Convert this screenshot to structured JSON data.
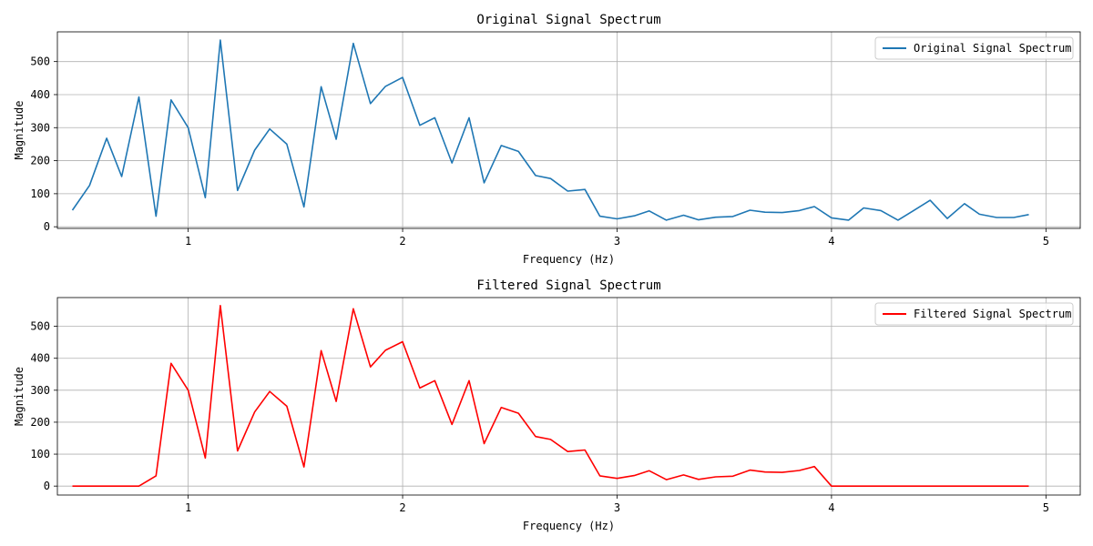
{
  "chart_data": [
    {
      "type": "line",
      "title": "Original Signal Spectrum",
      "xlabel": "Frequency (Hz)",
      "ylabel": "Magnitude",
      "xlim": [
        0.39,
        5.16
      ],
      "ylim": [
        -5,
        590
      ],
      "xticks": [
        1,
        2,
        3,
        4,
        5
      ],
      "yticks": [
        0,
        100,
        200,
        300,
        400,
        500
      ],
      "grid": true,
      "legend_position": "top-right",
      "series": [
        {
          "name": "Original Signal Spectrum",
          "color": "#1f77b4",
          "x": [
            0.46,
            0.54,
            0.62,
            0.69,
            0.77,
            0.85,
            0.92,
            1.0,
            1.08,
            1.15,
            1.23,
            1.31,
            1.38,
            1.46,
            1.54,
            1.62,
            1.69,
            1.77,
            1.85,
            1.92,
            2.0,
            2.08,
            2.15,
            2.23,
            2.31,
            2.38,
            2.46,
            2.54,
            2.62,
            2.69,
            2.77,
            2.85,
            2.92,
            3.0,
            3.08,
            3.15,
            3.23,
            3.31,
            3.38,
            3.46,
            3.54,
            3.62,
            3.69,
            3.77,
            3.85,
            3.92,
            4.0,
            4.08,
            4.15,
            4.23,
            4.31,
            4.38,
            4.46,
            4.54,
            4.62,
            4.69,
            4.77,
            4.85,
            4.92
          ],
          "y": [
            50,
            125,
            268,
            152,
            393,
            32,
            384,
            300,
            88,
            565,
            110,
            232,
            296,
            250,
            60,
            424,
            265,
            555,
            373,
            425,
            452,
            307,
            330,
            193,
            330,
            133,
            246,
            228,
            155,
            146,
            108,
            113,
            32,
            24,
            33,
            48,
            20,
            35,
            21,
            29,
            31,
            50,
            44,
            43,
            49,
            61,
            27,
            20,
            57,
            49,
            20,
            48,
            80,
            25,
            70,
            38,
            28,
            28,
            37
          ]
        }
      ]
    },
    {
      "type": "line",
      "title": "Filtered Signal Spectrum",
      "xlabel": "Frequency (Hz)",
      "ylabel": "Magnitude",
      "xlim": [
        0.39,
        5.16
      ],
      "ylim": [
        -28,
        590
      ],
      "xticks": [
        1,
        2,
        3,
        4,
        5
      ],
      "yticks": [
        0,
        100,
        200,
        300,
        400,
        500
      ],
      "grid": true,
      "legend_position": "top-right",
      "series": [
        {
          "name": "Filtered Signal Spectrum",
          "color": "#ff0000",
          "x": [
            0.46,
            0.54,
            0.62,
            0.69,
            0.77,
            0.85,
            0.92,
            1.0,
            1.08,
            1.15,
            1.23,
            1.31,
            1.38,
            1.46,
            1.54,
            1.62,
            1.69,
            1.77,
            1.85,
            1.92,
            2.0,
            2.08,
            2.15,
            2.23,
            2.31,
            2.38,
            2.46,
            2.54,
            2.62,
            2.69,
            2.77,
            2.85,
            2.92,
            3.0,
            3.08,
            3.15,
            3.23,
            3.31,
            3.38,
            3.46,
            3.54,
            3.62,
            3.69,
            3.77,
            3.85,
            3.92,
            4.0,
            4.08,
            4.15,
            4.23,
            4.31,
            4.38,
            4.46,
            4.54,
            4.62,
            4.69,
            4.77,
            4.85,
            4.92
          ],
          "y": [
            0,
            0,
            0,
            0,
            0,
            32,
            384,
            300,
            88,
            565,
            110,
            232,
            296,
            250,
            60,
            424,
            265,
            555,
            373,
            425,
            452,
            307,
            330,
            193,
            330,
            133,
            246,
            228,
            155,
            146,
            108,
            113,
            32,
            24,
            33,
            48,
            20,
            35,
            21,
            29,
            31,
            50,
            44,
            43,
            49,
            61,
            0,
            0,
            0,
            0,
            0,
            0,
            0,
            0,
            0,
            0,
            0,
            0,
            0
          ]
        }
      ]
    }
  ]
}
